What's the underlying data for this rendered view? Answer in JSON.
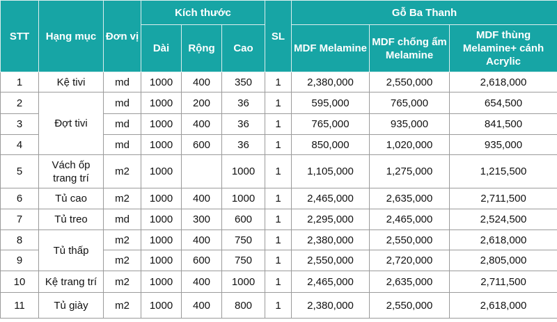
{
  "table": {
    "header": {
      "stt": "STT",
      "item": "Hạng mục",
      "unit": "Đơn vị",
      "size": "Kích thước",
      "qty": "SL",
      "brand": "Gỗ Ba Thanh",
      "dims": [
        "Dài",
        "Rộng",
        "Cao"
      ],
      "materials": [
        "MDF Melamine",
        "MDF chống ẩm Melamine",
        "MDF thùng Melamine+ cánh Acrylic"
      ]
    },
    "rows": [
      {
        "stt": "1",
        "item": "Kệ tivi",
        "unit": "md",
        "dims": [
          "1000",
          "400",
          "350"
        ],
        "qty": "1",
        "prices": [
          "2,380,000",
          "2,550,000",
          "2,618,000"
        ]
      },
      {
        "stt": "2",
        "item": "Đợt tivi",
        "unit": "md",
        "dims": [
          "1000",
          "200",
          "36"
        ],
        "qty": "1",
        "prices": [
          "595,000",
          "765,000",
          "654,500"
        ]
      },
      {
        "stt": "3",
        "unit": "md",
        "dims": [
          "1000",
          "400",
          "36"
        ],
        "qty": "1",
        "prices": [
          "765,000",
          "935,000",
          "841,500"
        ]
      },
      {
        "stt": "4",
        "unit": "md",
        "dims": [
          "1000",
          "600",
          "36"
        ],
        "qty": "1",
        "prices": [
          "850,000",
          "1,020,000",
          "935,000"
        ]
      },
      {
        "stt": "5",
        "item": "Vách ốp trang trí",
        "unit": "m2",
        "dims": [
          "1000",
          null,
          "1000"
        ],
        "qty": "1",
        "prices": [
          "1,105,000",
          "1,275,000",
          "1,215,500"
        ]
      },
      {
        "stt": "6",
        "item": "Tủ cao",
        "unit": "m2",
        "dims": [
          "1000",
          "400",
          "1000"
        ],
        "qty": "1",
        "prices": [
          "2,465,000",
          "2,635,000",
          "2,711,500"
        ]
      },
      {
        "stt": "7",
        "item": "Tủ treo",
        "unit": "md",
        "dims": [
          "1000",
          "300",
          "600"
        ],
        "qty": "1",
        "prices": [
          "2,295,000",
          "2,465,000",
          "2,524,500"
        ]
      },
      {
        "stt": "8",
        "item": "Tủ thấp",
        "unit": "m2",
        "dims": [
          "1000",
          "400",
          "750"
        ],
        "qty": "1",
        "prices": [
          "2,380,000",
          "2,550,000",
          "2,618,000"
        ]
      },
      {
        "stt": "9",
        "unit": "m2",
        "dims": [
          "1000",
          "600",
          "750"
        ],
        "qty": "1",
        "prices": [
          "2,550,000",
          "2,720,000",
          "2,805,000"
        ]
      },
      {
        "stt": "10",
        "item": "Kệ trang trí",
        "unit": "m2",
        "dims": [
          "1000",
          "400",
          "1000"
        ],
        "qty": "1",
        "prices": [
          "2,465,000",
          "2,635,000",
          "2,711,500"
        ]
      },
      {
        "stt": "11",
        "item": "Tủ giày",
        "unit": "m2",
        "dims": [
          "1000",
          "400",
          "800"
        ],
        "qty": "1",
        "prices": [
          "2,380,000",
          "2,550,000",
          "2,618,000"
        ]
      }
    ]
  }
}
